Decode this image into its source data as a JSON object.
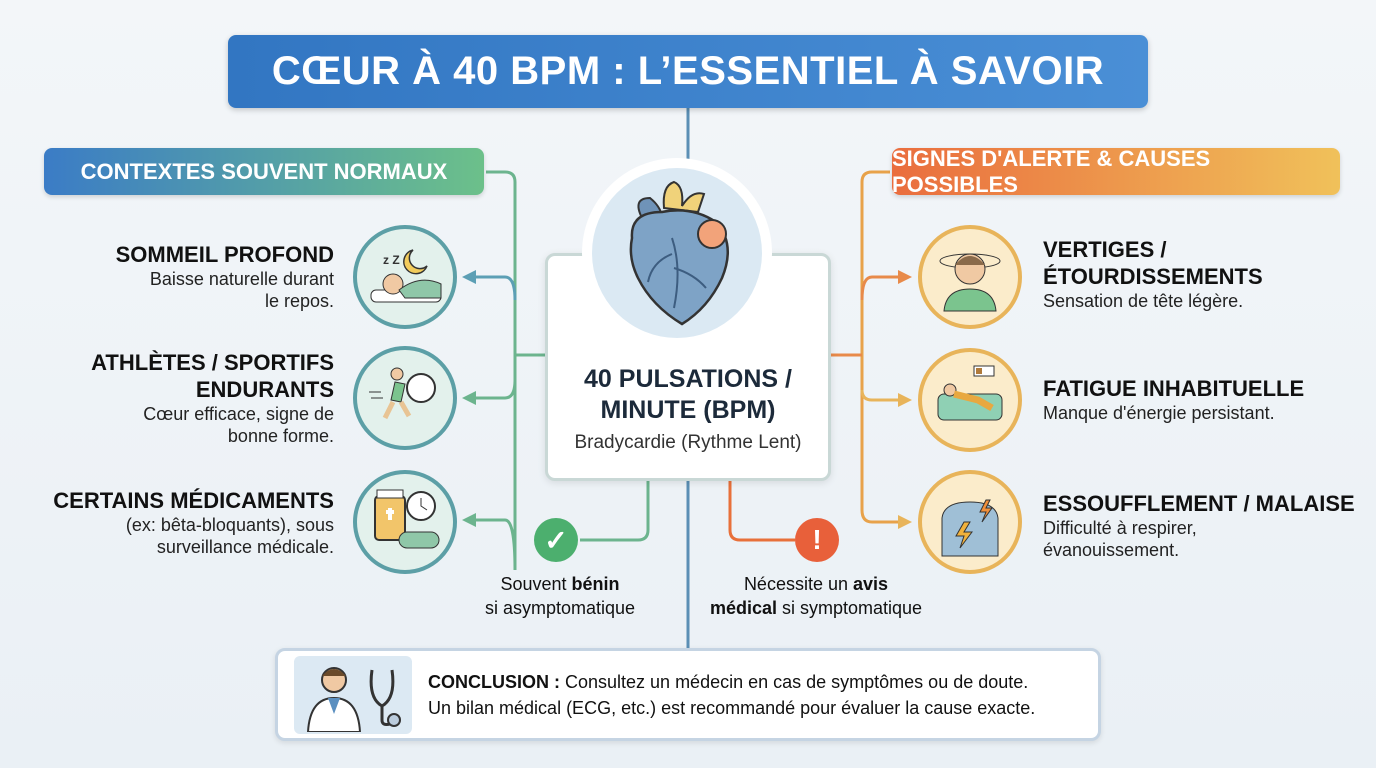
{
  "title": "CŒUR À 40 BPM : L’ESSENTIEL À SAVOIR",
  "left": {
    "header": "CONTEXTES SOUVENT NORMAUX",
    "color": "#5c9fa6",
    "items": [
      {
        "title": "SOMMEIL PROFOND",
        "desc": "Baisse naturelle durant le repos.",
        "icon": "sleeping-person-icon"
      },
      {
        "title": "ATHLÈTES / SPORTIFS ENDURANTS",
        "desc": "Cœur efficace, signe de bonne forme.",
        "icon": "runner-stopwatch-icon"
      },
      {
        "title": "CERTAINS MÉDICAMENTS",
        "desc": "(ex: bêta-bloquants), sous surveillance médicale.",
        "icon": "medication-clock-icon"
      }
    ]
  },
  "right": {
    "header": "SIGNES D'ALERTE & CAUSES POSSIBLES",
    "color": "#e8b45a",
    "items": [
      {
        "title": "VERTIGES / ÉTOURDISSEMENTS",
        "desc": "Sensation de tête légère.",
        "icon": "dizzy-person-icon"
      },
      {
        "title": "FATIGUE INHABITUELLE",
        "desc": "Manque d'énergie persistant.",
        "icon": "tired-person-sofa-icon"
      },
      {
        "title": "ESSOUFFLEMENT / MALAISE",
        "desc": "Difficulté à respirer, évanouissement.",
        "icon": "chest-pain-icon"
      }
    ]
  },
  "center": {
    "title": "40 PULSATIONS / MINUTE (BPM)",
    "subtitle": "Bradycardie (Rythme Lent)",
    "icon": "heart-icon"
  },
  "benign": {
    "pre": "Souvent ",
    "bold": "bénin",
    "post": "si asymptomatique",
    "color": "#4caf6e"
  },
  "alert": {
    "pre": "Nécessite un ",
    "bold1": "avis",
    "bold2": "médical",
    "post": " si symptomatique",
    "color": "#e8603a"
  },
  "conclusion": {
    "label": "CONCLUSION :",
    "line1": " Consultez un médecin en cas de symptômes ou de doute.",
    "line2": "Un bilan médical (ECG, etc.) est recommandé pour évaluer la cause exacte.",
    "icon": "doctor-stethoscope-icon"
  }
}
